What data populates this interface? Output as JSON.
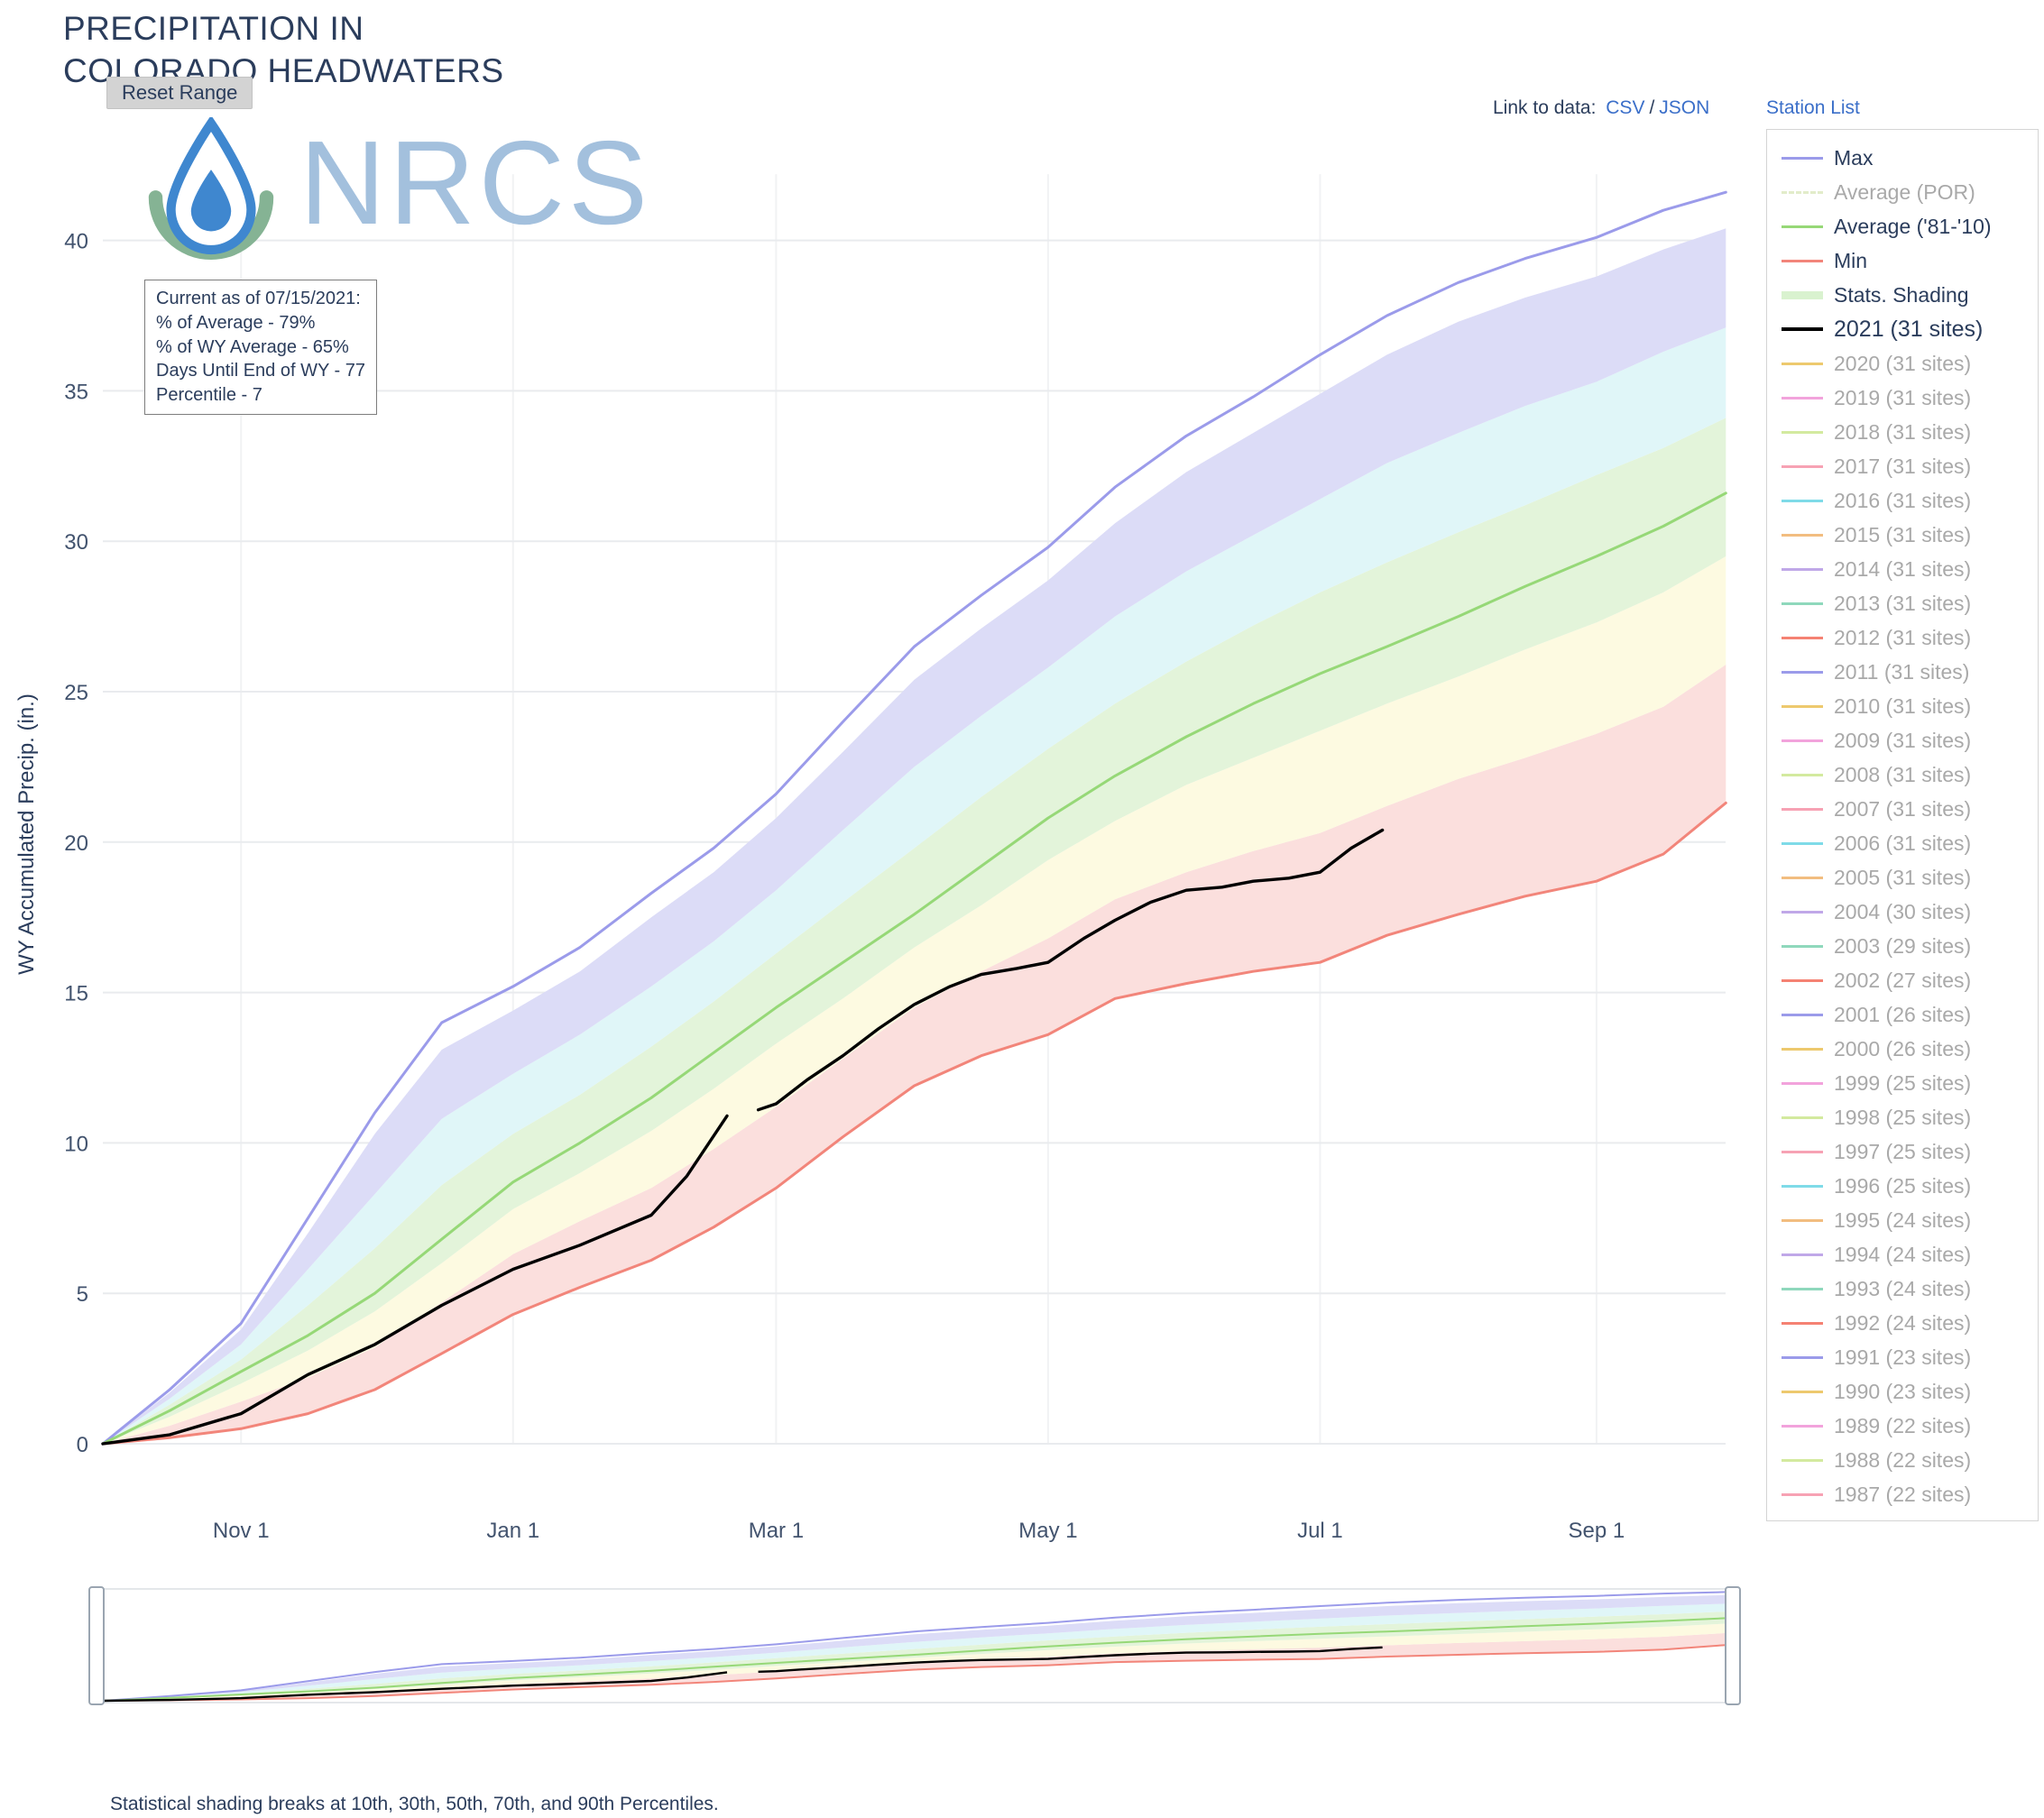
{
  "header": {
    "title_line1": "PRECIPITATION IN",
    "title_line2": "COLORADO HEADWATERS",
    "reset_button": "Reset Range",
    "link_to_data_label": "Link to data:",
    "csv_link": "CSV",
    "link_separator": "/",
    "json_link": "JSON",
    "station_list_link": "Station List",
    "logo_text": "NRCS"
  },
  "info_box": {
    "lines": [
      "Current as of 07/15/2021:",
      "% of Average - 79%",
      "% of WY Average - 65%",
      "Days Until End of WY - 77",
      "Percentile - 7"
    ]
  },
  "axes": {
    "y_label": "WY Accumulated Precip. (in.)"
  },
  "footer_note": "Statistical shading breaks at 10th, 30th, 50th, 70th, and 90th Percentiles.",
  "colors": {
    "link": "#3b6fc9",
    "title_text": "#2b3d5c",
    "max_line": "#9b9bea",
    "avg_line": "#96d877",
    "min_line": "#f2857a",
    "current_year_line": "#000000"
  },
  "legend": {
    "entries": [
      {
        "label": "Max",
        "color": "#9b9bea",
        "style": "line",
        "muted": false
      },
      {
        "label": "Average (POR)",
        "color": "#e2ecca",
        "style": "dash",
        "muted": true
      },
      {
        "label": "Average ('81-'10)",
        "color": "#96d877",
        "style": "line",
        "muted": false
      },
      {
        "label": "Min",
        "color": "#f2857a",
        "style": "line",
        "muted": false
      },
      {
        "label": "Stats. Shading",
        "color": "#d9f2cf",
        "style": "thick",
        "muted": false
      },
      {
        "label": "2021 (31 sites)",
        "color": "#000000",
        "style": "bold",
        "muted": false
      },
      {
        "label": "2020 (31 sites)",
        "color": "#edc96e",
        "style": "line",
        "muted": true
      },
      {
        "label": "2019 (31 sites)",
        "color": "#f2a3dc",
        "style": "line",
        "muted": true
      },
      {
        "label": "2018 (31 sites)",
        "color": "#d3ea9f",
        "style": "line",
        "muted": true
      },
      {
        "label": "2017 (31 sites)",
        "color": "#f7a2b4",
        "style": "line",
        "muted": true
      },
      {
        "label": "2016 (31 sites)",
        "color": "#7fdbe8",
        "style": "line",
        "muted": true
      },
      {
        "label": "2015 (31 sites)",
        "color": "#f2bd80",
        "style": "line",
        "muted": true
      },
      {
        "label": "2014 (31 sites)",
        "color": "#c0a8e8",
        "style": "line",
        "muted": true
      },
      {
        "label": "2013 (31 sites)",
        "color": "#8fd8bc",
        "style": "line",
        "muted": true
      },
      {
        "label": "2012 (31 sites)",
        "color": "#f58273",
        "style": "line",
        "muted": true
      },
      {
        "label": "2011 (31 sites)",
        "color": "#9b9bea",
        "style": "line",
        "muted": true
      },
      {
        "label": "2010 (31 sites)",
        "color": "#edc96e",
        "style": "line",
        "muted": true
      },
      {
        "label": "2009 (31 sites)",
        "color": "#f2a3dc",
        "style": "line",
        "muted": true
      },
      {
        "label": "2008 (31 sites)",
        "color": "#d3ea9f",
        "style": "line",
        "muted": true
      },
      {
        "label": "2007 (31 sites)",
        "color": "#f7a2b4",
        "style": "line",
        "muted": true
      },
      {
        "label": "2006 (31 sites)",
        "color": "#7fdbe8",
        "style": "line",
        "muted": true
      },
      {
        "label": "2005 (31 sites)",
        "color": "#f2bd80",
        "style": "line",
        "muted": true
      },
      {
        "label": "2004 (30 sites)",
        "color": "#c0a8e8",
        "style": "line",
        "muted": true
      },
      {
        "label": "2003 (29 sites)",
        "color": "#8fd8bc",
        "style": "line",
        "muted": true
      },
      {
        "label": "2002 (27 sites)",
        "color": "#f58273",
        "style": "line",
        "muted": true
      },
      {
        "label": "2001 (26 sites)",
        "color": "#9b9bea",
        "style": "line",
        "muted": true
      },
      {
        "label": "2000 (26 sites)",
        "color": "#edc96e",
        "style": "line",
        "muted": true
      },
      {
        "label": "1999 (25 sites)",
        "color": "#f2a3dc",
        "style": "line",
        "muted": true
      },
      {
        "label": "1998 (25 sites)",
        "color": "#d3ea9f",
        "style": "line",
        "muted": true
      },
      {
        "label": "1997 (25 sites)",
        "color": "#f7a2b4",
        "style": "line",
        "muted": true
      },
      {
        "label": "1996 (25 sites)",
        "color": "#7fdbe8",
        "style": "line",
        "muted": true
      },
      {
        "label": "1995 (24 sites)",
        "color": "#f2bd80",
        "style": "line",
        "muted": true
      },
      {
        "label": "1994 (24 sites)",
        "color": "#c0a8e8",
        "style": "line",
        "muted": true
      },
      {
        "label": "1993 (24 sites)",
        "color": "#8fd8bc",
        "style": "line",
        "muted": true
      },
      {
        "label": "1992 (24 sites)",
        "color": "#f58273",
        "style": "line",
        "muted": true
      },
      {
        "label": "1991 (23 sites)",
        "color": "#9b9bea",
        "style": "line",
        "muted": true
      },
      {
        "label": "1990 (23 sites)",
        "color": "#edc96e",
        "style": "line",
        "muted": true
      },
      {
        "label": "1989 (22 sites)",
        "color": "#f2a3dc",
        "style": "line",
        "muted": true
      },
      {
        "label": "1988 (22 sites)",
        "color": "#d3ea9f",
        "style": "line",
        "muted": true
      },
      {
        "label": "1987 (22 sites)",
        "color": "#f7a2b4",
        "style": "line",
        "muted": true
      }
    ]
  },
  "chart_data": {
    "type": "line",
    "title": "PRECIPITATION IN COLORADO HEADWATERS",
    "xlabel": "",
    "ylabel": "WY Accumulated Precip. (in.)",
    "ylim": [
      0,
      42
    ],
    "x_unit": "days since Oct 1 (water year)",
    "grid": true,
    "legend_position": "right",
    "x_ticks": [
      {
        "label": "Nov 1",
        "day": 31
      },
      {
        "label": "Jan 1",
        "day": 92
      },
      {
        "label": "Mar 1",
        "day": 151
      },
      {
        "label": "May 1",
        "day": 212
      },
      {
        "label": "Jul 1",
        "day": 273
      },
      {
        "label": "Sep 1",
        "day": 335
      }
    ],
    "y_ticks": [
      0,
      5,
      10,
      15,
      20,
      25,
      30,
      35,
      40
    ],
    "x_days": [
      0,
      15,
      31,
      46,
      61,
      76,
      92,
      107,
      123,
      137,
      151,
      166,
      182,
      197,
      212,
      227,
      243,
      258,
      273,
      288,
      304,
      319,
      335,
      350,
      364
    ],
    "series": [
      {
        "name": "Max",
        "color": "#9b9bea",
        "values": [
          0,
          1.8,
          4.0,
          7.5,
          11.0,
          14.0,
          15.2,
          16.5,
          18.3,
          19.8,
          21.6,
          24.0,
          26.5,
          28.2,
          29.8,
          31.8,
          33.5,
          34.8,
          36.2,
          37.5,
          38.6,
          39.4,
          40.1,
          41.0,
          41.6
        ]
      },
      {
        "name": "Average ('81-'10)",
        "color": "#96d877",
        "values": [
          0,
          1.1,
          2.4,
          3.6,
          5.0,
          6.8,
          8.7,
          10.0,
          11.5,
          13.0,
          14.5,
          16.0,
          17.6,
          19.2,
          20.8,
          22.2,
          23.5,
          24.6,
          25.6,
          26.5,
          27.5,
          28.5,
          29.5,
          30.5,
          31.6
        ]
      },
      {
        "name": "Min",
        "color": "#f2857a",
        "values": [
          0,
          0.2,
          0.5,
          1.0,
          1.8,
          3.0,
          4.3,
          5.2,
          6.1,
          7.2,
          8.5,
          10.2,
          11.9,
          12.9,
          13.6,
          14.8,
          15.3,
          15.7,
          16.0,
          16.9,
          17.6,
          18.2,
          18.7,
          19.6,
          21.3
        ]
      }
    ],
    "current_year": {
      "name": "2021 (31 sites)",
      "color": "#000000",
      "end_value": 20.4,
      "end_day": 287,
      "segments": [
        {
          "x": [
            0,
            15,
            31,
            46,
            61,
            76,
            92,
            107,
            123,
            131,
            140
          ],
          "y": [
            0,
            0.3,
            1.0,
            2.3,
            3.3,
            4.6,
            5.8,
            6.6,
            7.6,
            8.9,
            10.9
          ]
        },
        {
          "x": [
            147,
            151,
            158,
            166,
            174,
            182,
            190,
            197,
            205,
            212,
            220,
            227,
            235,
            243,
            251,
            258,
            266,
            273,
            280,
            287
          ],
          "y": [
            11.1,
            11.3,
            12.1,
            12.9,
            13.8,
            14.6,
            15.2,
            15.6,
            15.8,
            16.0,
            16.8,
            17.4,
            18.0,
            18.4,
            18.5,
            18.7,
            18.8,
            19.0,
            19.8,
            20.4
          ]
        }
      ]
    },
    "bands": [
      {
        "name": "Min-10th",
        "color": "#fbdfdd",
        "lower": [
          0,
          0.2,
          0.5,
          1.0,
          1.8,
          3.0,
          4.3,
          5.2,
          6.1,
          7.2,
          8.5,
          10.2,
          11.9,
          12.9,
          13.6,
          14.8,
          15.3,
          15.7,
          16.0,
          16.9,
          17.6,
          18.2,
          18.7,
          19.6,
          21.3
        ],
        "upper": [
          0,
          0.6,
          1.4,
          2.2,
          3.2,
          4.7,
          6.3,
          7.4,
          8.5,
          9.8,
          11.2,
          12.8,
          14.5,
          15.7,
          16.8,
          18.1,
          19.0,
          19.7,
          20.3,
          21.2,
          22.1,
          22.8,
          23.6,
          24.5,
          25.9
        ]
      },
      {
        "name": "10th-30th",
        "color": "#fdfae1",
        "lower": [
          0,
          0.6,
          1.4,
          2.2,
          3.2,
          4.7,
          6.3,
          7.4,
          8.5,
          9.8,
          11.2,
          12.8,
          14.5,
          15.7,
          16.8,
          18.1,
          19.0,
          19.7,
          20.3,
          21.2,
          22.1,
          22.8,
          23.6,
          24.5,
          25.9
        ],
        "upper": [
          0,
          0.9,
          2.0,
          3.1,
          4.4,
          6.0,
          7.8,
          9.0,
          10.4,
          11.8,
          13.3,
          14.8,
          16.5,
          17.9,
          19.4,
          20.7,
          21.9,
          22.8,
          23.7,
          24.6,
          25.5,
          26.4,
          27.3,
          28.3,
          29.5
        ]
      },
      {
        "name": "30th-50th",
        "color": "#e3f4da",
        "lower": [
          0,
          0.9,
          2.0,
          3.1,
          4.4,
          6.0,
          7.8,
          9.0,
          10.4,
          11.8,
          13.3,
          14.8,
          16.5,
          17.9,
          19.4,
          20.7,
          21.9,
          22.8,
          23.7,
          24.6,
          25.5,
          26.4,
          27.3,
          28.3,
          29.5
        ],
        "upper": [
          0,
          1.3,
          2.8,
          4.6,
          6.5,
          8.6,
          10.3,
          11.6,
          13.2,
          14.7,
          16.3,
          18.0,
          19.8,
          21.5,
          23.1,
          24.6,
          26.0,
          27.2,
          28.3,
          29.3,
          30.3,
          31.2,
          32.2,
          33.1,
          34.1
        ]
      },
      {
        "name": "50th-70th",
        "color": "#e0f6f8",
        "lower": [
          0,
          1.3,
          2.8,
          4.6,
          6.5,
          8.6,
          10.3,
          11.6,
          13.2,
          14.7,
          16.3,
          18.0,
          19.8,
          21.5,
          23.1,
          24.6,
          26.0,
          27.2,
          28.3,
          29.3,
          30.3,
          31.2,
          32.2,
          33.1,
          34.1
        ],
        "upper": [
          0,
          1.5,
          3.3,
          5.8,
          8.3,
          10.8,
          12.3,
          13.6,
          15.2,
          16.7,
          18.4,
          20.4,
          22.5,
          24.2,
          25.8,
          27.5,
          29.0,
          30.2,
          31.4,
          32.6,
          33.6,
          34.5,
          35.3,
          36.3,
          37.1
        ]
      },
      {
        "name": "70th-90th",
        "color": "#dcdcf7",
        "lower": [
          0,
          1.5,
          3.3,
          5.8,
          8.3,
          10.8,
          12.3,
          13.6,
          15.2,
          16.7,
          18.4,
          20.4,
          22.5,
          24.2,
          25.8,
          27.5,
          29.0,
          30.2,
          31.4,
          32.6,
          33.6,
          34.5,
          35.3,
          36.3,
          37.1
        ],
        "upper": [
          0,
          1.7,
          3.8,
          7.0,
          10.3,
          13.1,
          14.4,
          15.7,
          17.5,
          19.0,
          20.8,
          23.0,
          25.4,
          27.1,
          28.7,
          30.6,
          32.3,
          33.6,
          34.9,
          36.2,
          37.3,
          38.1,
          38.8,
          39.7,
          40.4
        ]
      }
    ]
  }
}
